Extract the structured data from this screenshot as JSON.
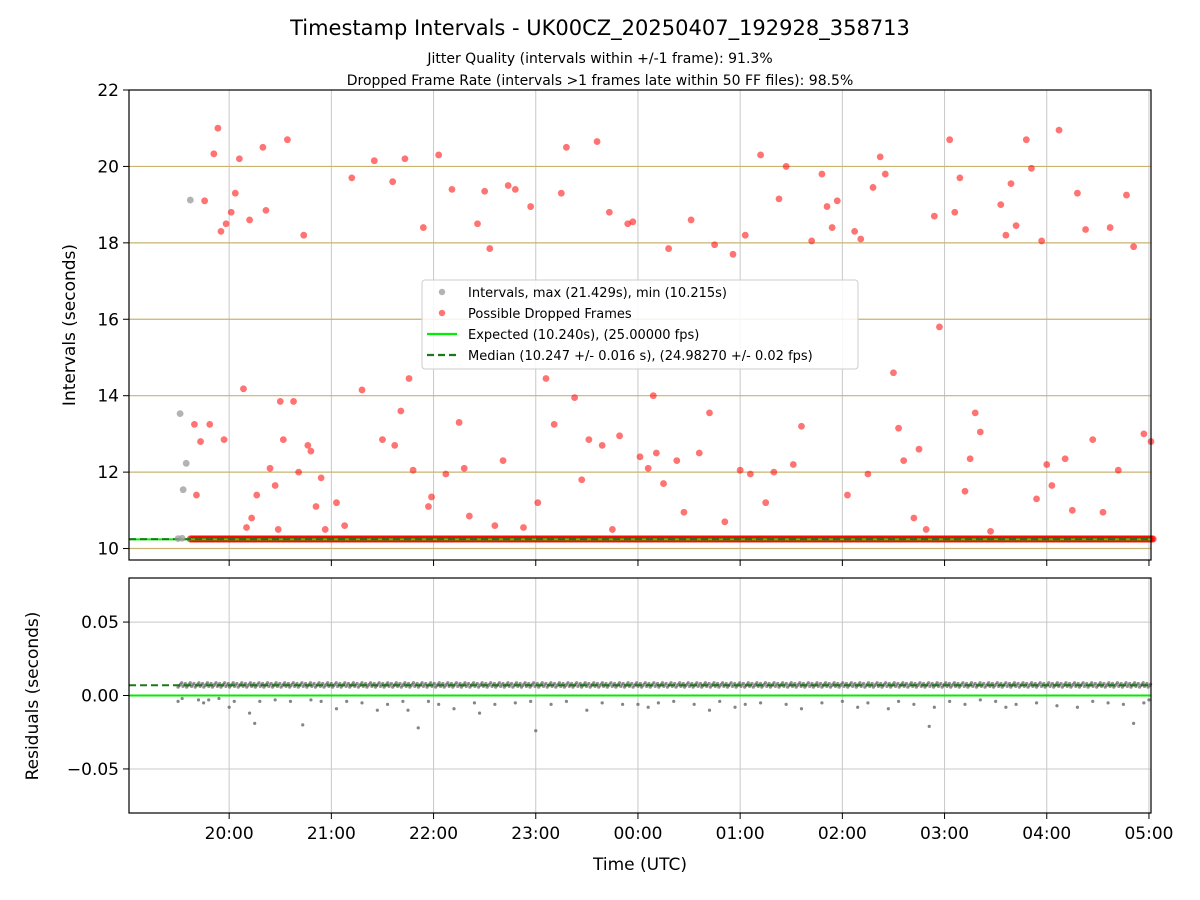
{
  "title": "Timestamp Intervals - UK00CZ_20250407_192928_358713",
  "subtitle1": "Jitter Quality (intervals within +/-1 frame): 91.3%",
  "subtitle2": "Dropped Frame Rate (intervals >1 frames late within 50 FF files): 98.5%",
  "colors": {
    "intervals": "#999999",
    "dropped": "#ff0000",
    "expected": "#00ee00",
    "median": "#1a7a1a",
    "hgrid_top": "#c8b46e",
    "vgrid": "#c8c8c8",
    "residual_points": "#666666"
  },
  "chart_data": [
    {
      "type": "scatter",
      "panel": "top",
      "ylabel": "Intervals (seconds)",
      "ylim": [
        9.7,
        22
      ],
      "yticks": [
        "10",
        "12",
        "14",
        "16",
        "18",
        "20",
        "22"
      ],
      "grid": "horizontal gold + vertical gray",
      "legend_position": "center",
      "legend": [
        "Intervals, max (21.429s), min (10.215s)",
        "Possible Dropped Frames",
        "Expected (10.240s), (25.00000 fps)",
        "Median (10.247 +/- 0.016 s), (24.98270 +/- 0.02 fps)"
      ],
      "expected_value": 10.24,
      "median_value": 10.247,
      "series": [
        {
          "name": "Intervals, max (21.429s), min (10.215s)",
          "points": [
            [
              -0.48,
              13.53
            ],
            [
              -0.45,
              11.54
            ],
            [
              -0.42,
              12.23
            ],
            [
              -0.38,
              19.12
            ],
            [
              -0.5,
              10.26
            ],
            [
              -0.46,
              10.27
            ]
          ]
        },
        {
          "name": "Possible Dropped Frames",
          "dense_band": {
            "x_start": -0.38,
            "x_end": 9.05,
            "y": 10.25
          },
          "points": [
            [
              -0.34,
              13.25
            ],
            [
              -0.32,
              11.4
            ],
            [
              -0.28,
              12.8
            ],
            [
              -0.24,
              19.1
            ],
            [
              -0.19,
              13.25
            ],
            [
              -0.15,
              20.33
            ],
            [
              -0.11,
              21.0
            ],
            [
              -0.08,
              18.3
            ],
            [
              -0.05,
              12.85
            ],
            [
              -0.03,
              18.5
            ],
            [
              0.02,
              18.8
            ],
            [
              0.06,
              19.3
            ],
            [
              0.1,
              20.2
            ],
            [
              0.14,
              14.18
            ],
            [
              0.17,
              10.55
            ],
            [
              0.2,
              18.6
            ],
            [
              0.22,
              10.8
            ],
            [
              0.27,
              11.4
            ],
            [
              0.33,
              20.5
            ],
            [
              0.36,
              18.85
            ],
            [
              0.4,
              12.1
            ],
            [
              0.45,
              11.65
            ],
            [
              0.48,
              10.5
            ],
            [
              0.5,
              13.85
            ],
            [
              0.53,
              12.85
            ],
            [
              0.57,
              20.7
            ],
            [
              0.63,
              13.85
            ],
            [
              0.68,
              12.0
            ],
            [
              0.73,
              18.2
            ],
            [
              0.77,
              12.7
            ],
            [
              0.8,
              12.55
            ],
            [
              0.85,
              11.1
            ],
            [
              0.9,
              11.85
            ],
            [
              0.94,
              10.5
            ],
            [
              1.05,
              11.2
            ],
            [
              1.13,
              10.6
            ],
            [
              1.2,
              19.7
            ],
            [
              1.3,
              14.15
            ],
            [
              1.42,
              20.15
            ],
            [
              1.5,
              12.85
            ],
            [
              1.6,
              19.6
            ],
            [
              1.62,
              12.7
            ],
            [
              1.68,
              13.6
            ],
            [
              1.72,
              20.2
            ],
            [
              1.76,
              14.45
            ],
            [
              1.8,
              12.05
            ],
            [
              1.9,
              18.4
            ],
            [
              1.95,
              11.1
            ],
            [
              1.98,
              11.35
            ],
            [
              2.05,
              20.3
            ],
            [
              2.12,
              11.95
            ],
            [
              2.18,
              19.4
            ],
            [
              2.25,
              13.3
            ],
            [
              2.3,
              12.1
            ],
            [
              2.35,
              10.85
            ],
            [
              2.43,
              18.5
            ],
            [
              2.5,
              19.35
            ],
            [
              2.55,
              17.85
            ],
            [
              2.6,
              10.6
            ],
            [
              2.68,
              12.3
            ],
            [
              2.73,
              19.5
            ],
            [
              2.8,
              19.4
            ],
            [
              2.88,
              10.55
            ],
            [
              2.95,
              18.95
            ],
            [
              3.02,
              11.2
            ],
            [
              3.1,
              14.45
            ],
            [
              3.18,
              13.25
            ],
            [
              3.25,
              19.3
            ],
            [
              3.3,
              20.5
            ],
            [
              3.38,
              13.95
            ],
            [
              3.45,
              11.8
            ],
            [
              3.52,
              12.85
            ],
            [
              3.6,
              20.65
            ],
            [
              3.65,
              12.7
            ],
            [
              3.72,
              18.8
            ],
            [
              3.75,
              10.5
            ],
            [
              3.82,
              12.95
            ],
            [
              3.9,
              18.5
            ],
            [
              3.95,
              18.55
            ],
            [
              4.02,
              12.4
            ],
            [
              4.1,
              12.1
            ],
            [
              4.15,
              14.0
            ],
            [
              4.18,
              12.5
            ],
            [
              4.25,
              11.7
            ],
            [
              4.3,
              17.85
            ],
            [
              4.38,
              12.3
            ],
            [
              4.45,
              10.95
            ],
            [
              4.52,
              18.6
            ],
            [
              4.6,
              12.5
            ],
            [
              4.7,
              13.55
            ],
            [
              4.75,
              17.95
            ],
            [
              4.85,
              10.7
            ],
            [
              4.93,
              17.7
            ],
            [
              5.0,
              12.05
            ],
            [
              5.05,
              18.2
            ],
            [
              5.1,
              11.95
            ],
            [
              5.2,
              20.3
            ],
            [
              5.25,
              11.2
            ],
            [
              5.33,
              12.0
            ],
            [
              5.38,
              19.15
            ],
            [
              5.45,
              20.0
            ],
            [
              5.52,
              12.2
            ],
            [
              5.6,
              13.2
            ],
            [
              5.7,
              18.05
            ],
            [
              5.8,
              19.8
            ],
            [
              5.85,
              18.95
            ],
            [
              5.9,
              18.4
            ],
            [
              5.95,
              19.1
            ],
            [
              6.05,
              11.4
            ],
            [
              6.12,
              18.3
            ],
            [
              6.18,
              18.1
            ],
            [
              6.25,
              11.95
            ],
            [
              6.3,
              19.45
            ],
            [
              6.37,
              20.25
            ],
            [
              6.42,
              19.8
            ],
            [
              6.5,
              14.6
            ],
            [
              6.55,
              13.15
            ],
            [
              6.6,
              12.3
            ],
            [
              6.7,
              10.8
            ],
            [
              6.75,
              12.6
            ],
            [
              6.82,
              10.5
            ],
            [
              6.9,
              18.7
            ],
            [
              6.95,
              15.8
            ],
            [
              7.05,
              20.7
            ],
            [
              7.1,
              18.8
            ],
            [
              7.15,
              19.7
            ],
            [
              7.2,
              11.5
            ],
            [
              7.25,
              12.35
            ],
            [
              7.3,
              13.55
            ],
            [
              7.35,
              13.05
            ],
            [
              7.45,
              10.45
            ],
            [
              7.55,
              19.0
            ],
            [
              7.6,
              18.2
            ],
            [
              7.65,
              19.55
            ],
            [
              7.7,
              18.45
            ],
            [
              7.8,
              20.7
            ],
            [
              7.85,
              19.95
            ],
            [
              7.9,
              11.3
            ],
            [
              7.95,
              18.05
            ],
            [
              8.0,
              12.2
            ],
            [
              8.05,
              11.65
            ],
            [
              8.12,
              20.95
            ],
            [
              8.18,
              12.35
            ],
            [
              8.25,
              11.0
            ],
            [
              8.3,
              19.3
            ],
            [
              8.38,
              18.35
            ],
            [
              8.45,
              12.85
            ],
            [
              8.55,
              10.95
            ],
            [
              8.62,
              18.4
            ],
            [
              8.7,
              12.05
            ],
            [
              8.78,
              19.25
            ],
            [
              8.85,
              17.9
            ],
            [
              8.95,
              13.0
            ],
            [
              9.02,
              12.8
            ]
          ]
        }
      ]
    },
    {
      "type": "scatter",
      "panel": "bottom",
      "xlabel": "Time (UTC)",
      "ylabel": "Residuals (seconds)",
      "ylim": [
        -0.08,
        0.08
      ],
      "yticks": [
        "0.05",
        "0.00",
        "−0.05"
      ],
      "ytick_values": [
        0.05,
        0.0,
        -0.05
      ],
      "xticks": [
        "20:00",
        "21:00",
        "22:00",
        "23:00",
        "00:00",
        "01:00",
        "02:00",
        "03:00",
        "04:00",
        "05:00"
      ],
      "xlim_hours_since_2000": [
        -0.98,
        9.02
      ],
      "expected_residual": 0.0,
      "median_residual": 0.007,
      "series": [
        {
          "name": "Residuals",
          "band": {
            "x_start": -0.5,
            "x_end": 9.02,
            "y_center": 0.0072,
            "spread": 0.0015
          },
          "points": [
            [
              -0.5,
              -0.004
            ],
            [
              -0.46,
              -0.002
            ],
            [
              -0.3,
              -0.003
            ],
            [
              -0.25,
              -0.005
            ],
            [
              -0.2,
              -0.003
            ],
            [
              -0.1,
              -0.002
            ],
            [
              0.0,
              -0.008
            ],
            [
              0.05,
              -0.004
            ],
            [
              0.2,
              -0.012
            ],
            [
              0.25,
              -0.019
            ],
            [
              0.3,
              -0.004
            ],
            [
              0.45,
              -0.003
            ],
            [
              0.6,
              -0.004
            ],
            [
              0.72,
              -0.02
            ],
            [
              0.8,
              -0.003
            ],
            [
              0.9,
              -0.004
            ],
            [
              1.05,
              -0.009
            ],
            [
              1.15,
              -0.004
            ],
            [
              1.3,
              -0.005
            ],
            [
              1.45,
              -0.01
            ],
            [
              1.55,
              -0.006
            ],
            [
              1.7,
              -0.004
            ],
            [
              1.75,
              -0.01
            ],
            [
              1.85,
              -0.022
            ],
            [
              1.95,
              -0.004
            ],
            [
              2.05,
              -0.006
            ],
            [
              2.2,
              -0.009
            ],
            [
              2.4,
              -0.005
            ],
            [
              2.45,
              -0.012
            ],
            [
              2.6,
              -0.006
            ],
            [
              2.8,
              -0.005
            ],
            [
              2.95,
              -0.004
            ],
            [
              3.0,
              -0.024
            ],
            [
              3.15,
              -0.006
            ],
            [
              3.3,
              -0.004
            ],
            [
              3.5,
              -0.01
            ],
            [
              3.65,
              -0.005
            ],
            [
              3.85,
              -0.006
            ],
            [
              4.0,
              -0.006
            ],
            [
              4.1,
              -0.008
            ],
            [
              4.2,
              -0.005
            ],
            [
              4.35,
              -0.004
            ],
            [
              4.55,
              -0.006
            ],
            [
              4.7,
              -0.01
            ],
            [
              4.8,
              -0.004
            ],
            [
              4.95,
              -0.008
            ],
            [
              5.05,
              -0.006
            ],
            [
              5.2,
              -0.005
            ],
            [
              5.45,
              -0.006
            ],
            [
              5.6,
              -0.009
            ],
            [
              5.8,
              -0.005
            ],
            [
              6.0,
              -0.004
            ],
            [
              6.15,
              -0.008
            ],
            [
              6.25,
              -0.005
            ],
            [
              6.45,
              -0.009
            ],
            [
              6.55,
              -0.004
            ],
            [
              6.7,
              -0.006
            ],
            [
              6.85,
              -0.021
            ],
            [
              6.9,
              -0.008
            ],
            [
              7.05,
              -0.004
            ],
            [
              7.2,
              -0.006
            ],
            [
              7.35,
              -0.003
            ],
            [
              7.5,
              -0.004
            ],
            [
              7.6,
              -0.008
            ],
            [
              7.7,
              -0.006
            ],
            [
              7.9,
              -0.005
            ],
            [
              8.1,
              -0.007
            ],
            [
              8.3,
              -0.008
            ],
            [
              8.45,
              -0.004
            ],
            [
              8.6,
              -0.005
            ],
            [
              8.75,
              -0.006
            ],
            [
              8.85,
              -0.019
            ],
            [
              8.95,
              -0.005
            ],
            [
              9.0,
              -0.003
            ]
          ]
        }
      ]
    }
  ]
}
